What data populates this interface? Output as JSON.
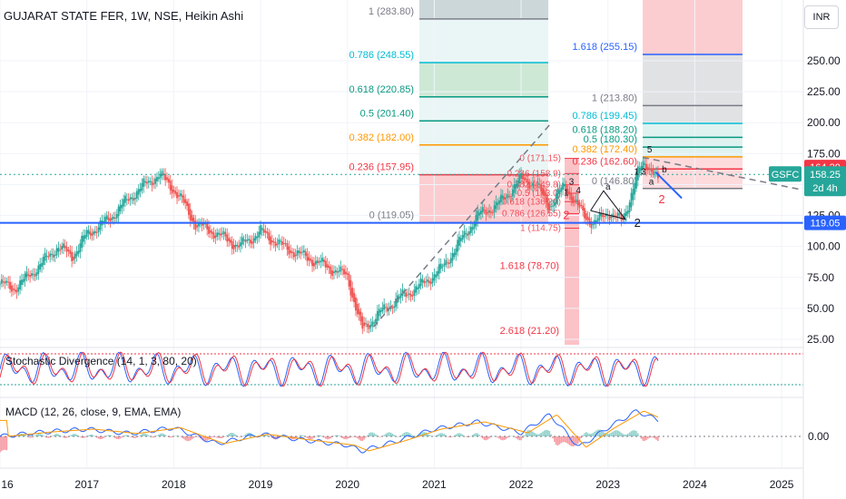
{
  "header": {
    "title": "GUJARAT STATE FER, 1W, NSE, Heikin Ashi",
    "currency_button": "INR"
  },
  "price_tags": {
    "ticker": "GSFC",
    "last": "158.25",
    "countdown": "2d 4h",
    "high_level": "164.20",
    "support_level": "119.05"
  },
  "colors": {
    "up": "#26a69a",
    "down": "#ef5350",
    "support_line": "#2962ff",
    "fib_red": "#f23645",
    "fib_orange": "#ff9800",
    "fib_green": "#089981",
    "fib_teal": "#00bcd4",
    "fib_blue": "#2962ff",
    "fib_gray": "#787b86"
  },
  "indicators": {
    "stoch_label": "Stochastic Divergence (14, 1, 3, 80, 20)",
    "macd_label": "MACD (12, 26, close, 9, EMA, EMA)",
    "macd_zero": "0.00"
  },
  "fib_left": [
    {
      "label": "1 (283.80)",
      "value": 283.8,
      "color": "#787b86"
    },
    {
      "label": "0.786 (248.55)",
      "value": 248.55,
      "color": "#00bcd4"
    },
    {
      "label": "0.618 (220.85)",
      "value": 220.85,
      "color": "#089981"
    },
    {
      "label": "0.5 (201.40)",
      "value": 201.4,
      "color": "#089981"
    },
    {
      "label": "0.382 (182.00)",
      "value": 182.0,
      "color": "#ff9800"
    },
    {
      "label": "0.236 (157.95)",
      "value": 157.95,
      "color": "#f23645"
    },
    {
      "label": "0 (119.05)",
      "value": 119.05,
      "color": "#787b86"
    },
    {
      "label": "1.618 (78.70)",
      "value": 78.7,
      "color": "#f23645"
    },
    {
      "label": "2.618 (21.20)",
      "value": 21.2,
      "color": "#f23645"
    }
  ],
  "fib_right": [
    {
      "label": "1.618 (255.15)",
      "value": 255.15,
      "color": "#2962ff"
    },
    {
      "label": "1 (213.80)",
      "value": 213.8,
      "color": "#787b86"
    },
    {
      "label": "0.786 (199.45)",
      "value": 199.45,
      "color": "#00bcd4"
    },
    {
      "label": "0.618 (188.20)",
      "value": 188.2,
      "color": "#089981"
    },
    {
      "label": "0.5 (180.30)",
      "value": 180.3,
      "color": "#089981"
    },
    {
      "label": "0.382 (172.40)",
      "value": 172.4,
      "color": "#ff9800"
    },
    {
      "label": "0.236 (162.60)",
      "value": 162.6,
      "color": "#f23645"
    },
    {
      "label": "0 (146.80)",
      "value": 146.8,
      "color": "#787b86"
    }
  ],
  "fib_mid": [
    {
      "label": "0 (171.15)",
      "value": 171.15,
      "color": "#f23645"
    },
    {
      "label": "0.236 (158.9)",
      "value": 158.9,
      "color": "#f23645"
    },
    {
      "label": "0.382 (149.8)",
      "value": 149.8,
      "color": "#f23645"
    },
    {
      "label": "0.5 (143.0)",
      "value": 143.0,
      "color": "#f23645"
    },
    {
      "label": "0.618 (136.20)",
      "value": 136.2,
      "color": "#f23645"
    },
    {
      "label": "0.786 (126.55)",
      "value": 126.55,
      "color": "#f23645"
    },
    {
      "label": "1 (114.75)",
      "value": 114.75,
      "color": "#f23645"
    }
  ],
  "annotations": [
    "3",
    "1",
    "4",
    "a",
    "2",
    "2",
    "5",
    "1",
    "3",
    "2",
    "a",
    "b"
  ],
  "chart_data": {
    "type": "candlestick",
    "price_axis": {
      "ticks": [
        25,
        50,
        75,
        100,
        125,
        150,
        175,
        200,
        225,
        250
      ],
      "tick_labels": [
        "25.00",
        "50.00",
        "75.00",
        "100.00",
        "125.00",
        "150.00",
        "175.00",
        "200.00",
        "225.00",
        "250.00"
      ],
      "range": [
        18,
        290
      ]
    },
    "time_axis": {
      "labels": [
        "16",
        "2017",
        "2018",
        "2019",
        "2020",
        "2021",
        "2022",
        "2023",
        "2024",
        "2025"
      ],
      "range": [
        "2016-01",
        "2025-04"
      ]
    },
    "price_path": [
      [
        "2016-01",
        70
      ],
      [
        "2016-03",
        66
      ],
      [
        "2016-06",
        82
      ],
      [
        "2016-09",
        100
      ],
      [
        "2016-11",
        92
      ],
      [
        "2017-01",
        110
      ],
      [
        "2017-04",
        122
      ],
      [
        "2017-07",
        140
      ],
      [
        "2017-09",
        150
      ],
      [
        "2017-11",
        158
      ],
      [
        "2018-01",
        146
      ],
      [
        "2018-02",
        138
      ],
      [
        "2018-04",
        118
      ],
      [
        "2018-07",
        110
      ],
      [
        "2018-10",
        100
      ],
      [
        "2019-01",
        112
      ],
      [
        "2019-04",
        100
      ],
      [
        "2019-07",
        92
      ],
      [
        "2019-10",
        84
      ],
      [
        "2020-01",
        76
      ],
      [
        "2020-03",
        32
      ],
      [
        "2020-05",
        44
      ],
      [
        "2020-08",
        58
      ],
      [
        "2020-11",
        68
      ],
      [
        "2021-02",
        82
      ],
      [
        "2021-05",
        108
      ],
      [
        "2021-07",
        125
      ],
      [
        "2021-10",
        135
      ],
      [
        "2022-01",
        155
      ],
      [
        "2022-03",
        150
      ],
      [
        "2022-05",
        132
      ],
      [
        "2022-07",
        150
      ],
      [
        "2022-09",
        130
      ],
      [
        "2022-11",
        118
      ],
      [
        "2023-01",
        128
      ],
      [
        "2023-03",
        120
      ],
      [
        "2023-05",
        158
      ],
      [
        "2023-06",
        168
      ],
      [
        "2023-07",
        163
      ],
      [
        "2023-08",
        152
      ]
    ],
    "macd_path": [
      [
        "2016-01",
        0.0
      ],
      [
        "2016-07",
        0.6
      ],
      [
        "2017-01",
        1.0
      ],
      [
        "2017-07",
        0.4
      ],
      [
        "2018-01",
        1.2
      ],
      [
        "2018-07",
        -1.0
      ],
      [
        "2019-01",
        0.3
      ],
      [
        "2019-07",
        -0.5
      ],
      [
        "2020-01",
        -1.2
      ],
      [
        "2020-03",
        -2.0
      ],
      [
        "2020-08",
        -0.6
      ],
      [
        "2021-01",
        1.0
      ],
      [
        "2021-07",
        2.0
      ],
      [
        "2022-01",
        0.5
      ],
      [
        "2022-05",
        3.0
      ],
      [
        "2022-09",
        -1.5
      ],
      [
        "2023-01",
        1.2
      ],
      [
        "2023-05",
        3.5
      ],
      [
        "2023-08",
        2.2
      ]
    ]
  }
}
